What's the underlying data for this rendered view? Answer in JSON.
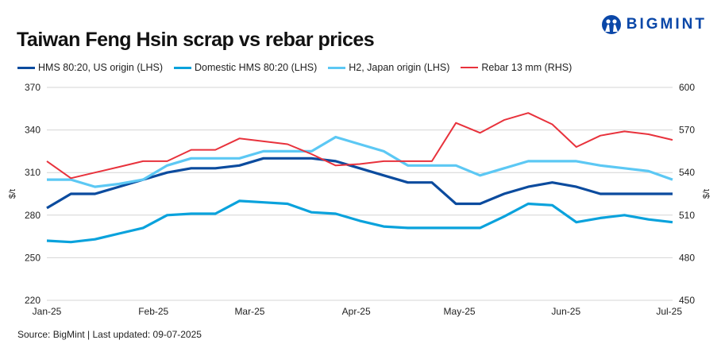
{
  "logo": {
    "text": "BIGMINT",
    "color": "#0a47a8"
  },
  "source": "Source: BigMint |  Last updated: 09-07-2025",
  "chart_data": {
    "type": "line",
    "title": "Taiwan Feng Hsin scrap vs rebar prices",
    "legend_position": "top",
    "grid": true,
    "x": [
      "2025-01-01",
      "2025-01-08",
      "2025-01-15",
      "2025-01-22",
      "2025-01-29",
      "2025-02-05",
      "2025-02-12",
      "2025-02-19",
      "2025-02-26",
      "2025-03-05",
      "2025-03-12",
      "2025-03-19",
      "2025-03-26",
      "2025-04-02",
      "2025-04-09",
      "2025-04-16",
      "2025-04-23",
      "2025-04-30",
      "2025-05-07",
      "2025-05-14",
      "2025-05-21",
      "2025-05-28",
      "2025-06-04",
      "2025-06-11",
      "2025-06-18",
      "2025-06-25",
      "2025-07-02"
    ],
    "x_ticks": [
      {
        "label": "Jan-25",
        "date": "2025-01-01"
      },
      {
        "label": "Feb-25",
        "date": "2025-02-01"
      },
      {
        "label": "Mar-25",
        "date": "2025-03-01"
      },
      {
        "label": "Apr-25",
        "date": "2025-04-01"
      },
      {
        "label": "May-25",
        "date": "2025-05-01"
      },
      {
        "label": "Jun-25",
        "date": "2025-06-01"
      },
      {
        "label": "Jul-25",
        "date": "2025-07-01"
      }
    ],
    "y_left": {
      "label": "$/t",
      "lim": [
        220,
        370
      ],
      "ticks": [
        "220",
        "250",
        "280",
        "310",
        "340",
        "370"
      ]
    },
    "y_right": {
      "label": "$/t",
      "lim": [
        450,
        600
      ],
      "ticks": [
        "450",
        "480",
        "510",
        "540",
        "570",
        "600"
      ]
    },
    "series": [
      {
        "name": "HMS 80:20, US origin (LHS)",
        "axis": "left",
        "color": "#0b4b9e",
        "values": [
          285,
          295,
          295,
          300,
          305,
          310,
          313,
          313,
          315,
          320,
          320,
          320,
          318,
          313,
          308,
          303,
          303,
          288,
          288,
          295,
          300,
          303,
          300,
          295,
          295,
          295,
          295
        ]
      },
      {
        "name": "Domestic HMS 80:20 (LHS)",
        "axis": "left",
        "color": "#0aa2dc",
        "values": [
          262,
          261,
          263,
          267,
          271,
          280,
          281,
          281,
          290,
          289,
          288,
          282,
          281,
          276,
          272,
          271,
          271,
          271,
          271,
          279,
          288,
          287,
          275,
          278,
          280,
          277,
          275
        ]
      },
      {
        "name": "H2, Japan origin (LHS)",
        "axis": "left",
        "color": "#5cc8f4",
        "values": [
          305,
          305,
          300,
          302,
          305,
          315,
          320,
          320,
          320,
          325,
          325,
          325,
          335,
          330,
          325,
          315,
          315,
          315,
          308,
          313,
          318,
          318,
          318,
          315,
          313,
          311,
          305
        ]
      },
      {
        "name": "Rebar 13 mm (RHS)",
        "axis": "right",
        "color": "#e8323c",
        "values": [
          548,
          536,
          540,
          544,
          548,
          548,
          556,
          556,
          564,
          562,
          560,
          553,
          545,
          546,
          548,
          548,
          548,
          575,
          568,
          577,
          582,
          574,
          558,
          566,
          569,
          567,
          563
        ]
      }
    ]
  }
}
